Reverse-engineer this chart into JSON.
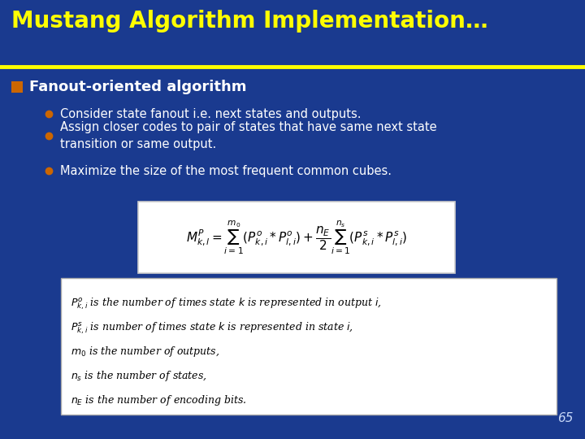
{
  "title": "Mustang Algorithm Implementation…",
  "title_color": "#FFFF00",
  "title_bg_color": "#1a3a8f",
  "title_underline_color": "#FFFF00",
  "body_bg_color": "#1a3a8f",
  "slide_number": "65",
  "slide_number_color": "#c8d8f8",
  "bullet_header": "Fanout-oriented algorithm",
  "bullet_header_color": "#ffffff",
  "bullet_square_color": "#cc6600",
  "sub_bullets": [
    "Consider state fanout i.e. next states and outputs.",
    "Assign closer codes to pair of states that have same next state\ntransition or same output.",
    "Maximize the size of the most frequent common cubes."
  ],
  "sub_bullet_color": "#ffffff",
  "sub_bullet_dot_color": "#cc6600",
  "formula_box_bg": "#ffffff",
  "formula_box_border": "#cccccc",
  "legend_box_bg": "#ffffff",
  "legend_box_border": "#aaaaaa",
  "formula_text": "$M^P_{k,l} = \\sum_{i=1}^{m_0}(P^o_{k,i} * P^o_{l,i}) + \\dfrac{n_E}{2}\\sum_{i=1}^{n_s}(P^s_{k,i} * P^s_{l,i})$",
  "legend_lines": [
    "$P^o_{k,i}$ is the number of times state $k$ is represented in output $i$,",
    "$P^s_{k,i}$ is number of times state $k$ is represented in state $i$,",
    "$m_0$ is the number of outputs,",
    "$n_s$ is the number of states,",
    "$n_E$ is the number of encoding bits."
  ],
  "title_fontsize": 20,
  "header_fontsize": 13,
  "bullet_fontsize": 10.5,
  "formula_fontsize": 11,
  "legend_fontsize": 9,
  "page_num_fontsize": 11
}
